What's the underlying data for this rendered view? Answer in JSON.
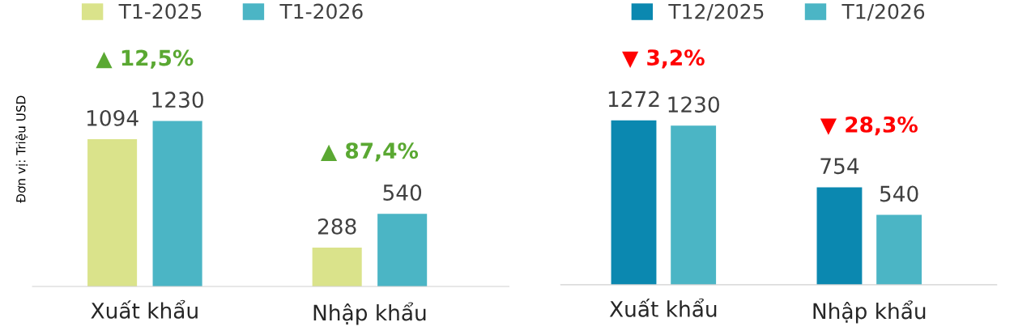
{
  "chart_data": [
    {
      "type": "bar",
      "ylabel": "Đơn vị: Triệu USD",
      "categories": [
        "Xuất khẩu",
        "Nhập khẩu"
      ],
      "data_labels": true,
      "legend": "top",
      "grid": false,
      "series": [
        {
          "name": "T1-2025",
          "color": "#dae38b",
          "values": [
            1094,
            288
          ]
        },
        {
          "name": "T1-2026",
          "color": "#4bb5c5",
          "values": [
            1230,
            540
          ]
        }
      ],
      "annotations": [
        "▲ 12,5%",
        "▲ 87,4%"
      ]
    },
    {
      "type": "bar",
      "categories": [
        "Xuất khẩu",
        "Nhập khẩu"
      ],
      "data_labels": true,
      "legend": "top",
      "grid": false,
      "series": [
        {
          "name": "T12/2025",
          "color": "#0b88b0",
          "values": [
            1272,
            754
          ]
        },
        {
          "name": "T1/2026",
          "color": "#4bb5c5",
          "values": [
            1230,
            540
          ]
        }
      ],
      "annotations": [
        "▼ 3,2%",
        "▼ 28,3%"
      ]
    }
  ]
}
